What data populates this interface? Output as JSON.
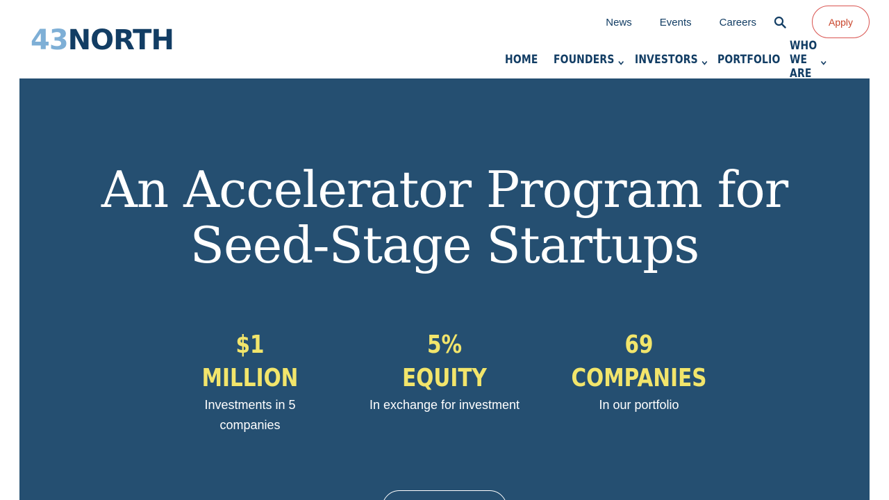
{
  "brand": {
    "logo_number": "43",
    "logo_word": "NORTH"
  },
  "utility_nav": {
    "news": "News",
    "events": "Events",
    "careers": "Careers",
    "apply": "Apply"
  },
  "main_nav": {
    "items": [
      {
        "label": "HOME",
        "has_dropdown": false
      },
      {
        "label": "FOUNDERS",
        "has_dropdown": true
      },
      {
        "label": "INVESTORS",
        "has_dropdown": true
      },
      {
        "label": "PORTFOLIO",
        "has_dropdown": false
      },
      {
        "label": "WHO WE ARE",
        "has_dropdown": true
      }
    ]
  },
  "hero": {
    "title_line1": "An Accelerator Program for",
    "title_line2": "Seed-Stage Startups",
    "stats": [
      {
        "value_line1": "$1",
        "value_line2": "MILLION",
        "desc": "Investments in 5 companies"
      },
      {
        "value_line1": "5%",
        "value_line2": "EQUITY",
        "desc": "In exchange for investment"
      },
      {
        "value_line1": "69",
        "value_line2": "COMPANIES",
        "desc": "In our portfolio"
      }
    ]
  },
  "colors": {
    "navy": "#123d64",
    "hero_bg": "#254f71",
    "logo_light": "#7eafd6",
    "stat_yellow": "#f2e56b",
    "apply_red": "#c9442a"
  },
  "icons": {
    "search": "search-icon",
    "chevron": "chevron-down-icon"
  }
}
